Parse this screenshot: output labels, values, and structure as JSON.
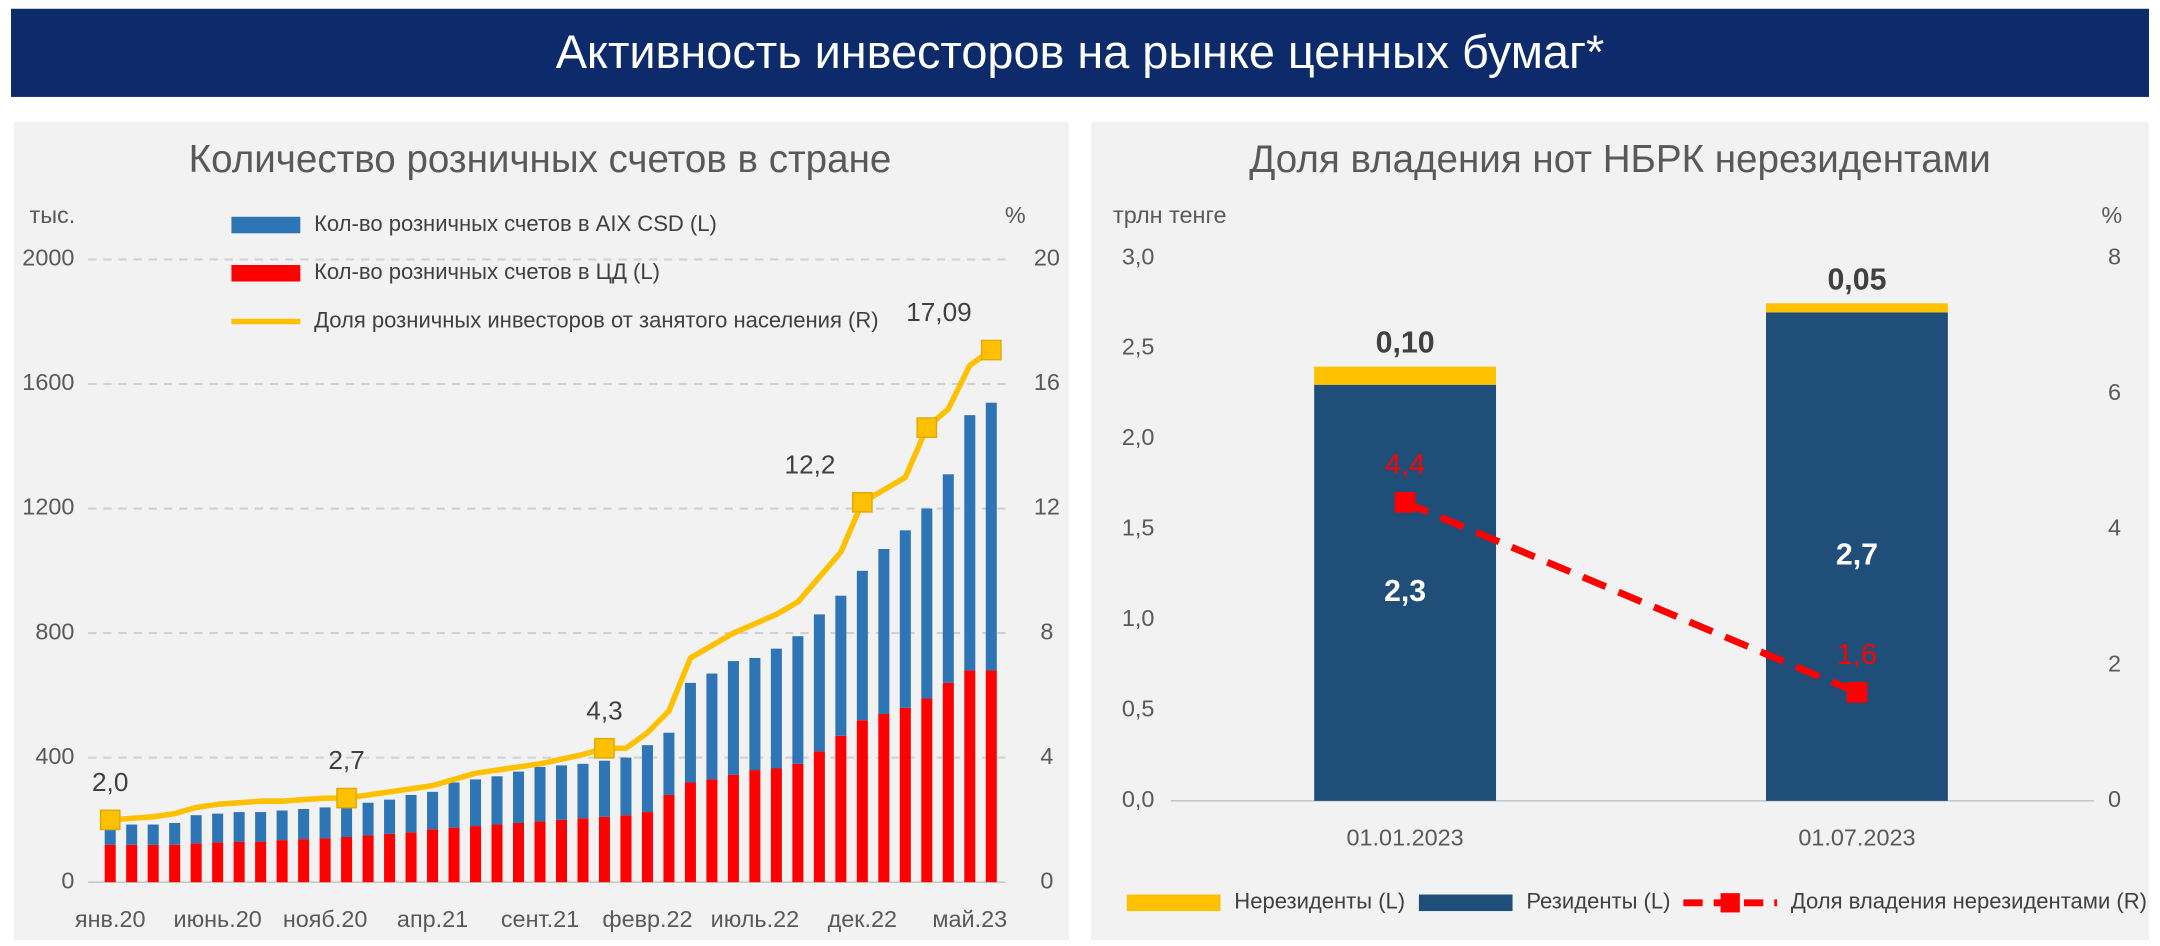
{
  "header": {
    "title": "Активность инвесторов на рынке ценных бумаг*"
  },
  "chart_data": [
    {
      "type": "bar",
      "title": "Количество розничных счетов в стране",
      "ylabel": "тыс.",
      "y2label": "%",
      "categories": [
        "янв.20",
        null,
        null,
        null,
        null,
        "июнь.20",
        null,
        null,
        null,
        null,
        "нояб.20",
        null,
        null,
        null,
        null,
        "апр.21",
        null,
        null,
        null,
        null,
        "сент.21",
        null,
        null,
        null,
        null,
        "февр.22",
        null,
        null,
        null,
        null,
        "июль.22",
        null,
        null,
        null,
        null,
        "дек.22",
        null,
        null,
        null,
        null,
        "май.23",
        null
      ],
      "series": [
        {
          "name": "Кол-во розничных счетов в AIX CSD (L)",
          "color": "#2e75b6",
          "values": [
            70,
            65,
            65,
            70,
            90,
            92,
            95,
            95,
            95,
            97,
            100,
            100,
            105,
            110,
            120,
            120,
            145,
            150,
            155,
            165,
            175,
            175,
            175,
            180,
            185,
            215,
            200,
            320,
            340,
            365,
            360,
            385,
            410,
            440,
            450,
            480,
            530,
            570,
            610,
            670,
            820,
            860
          ]
        },
        {
          "name": "Кол-во розничных счетов в ЦД (L)",
          "color": "#ff0000",
          "values": [
            120,
            120,
            120,
            120,
            125,
            128,
            130,
            130,
            135,
            138,
            140,
            145,
            150,
            155,
            160,
            170,
            175,
            180,
            185,
            190,
            195,
            200,
            205,
            210,
            215,
            225,
            280,
            320,
            330,
            345,
            360,
            365,
            380,
            420,
            470,
            520,
            540,
            560,
            590,
            640,
            680,
            680
          ]
        },
        {
          "name": "Доля розничных инвесторов от занятого населения (R)",
          "color": "#ffc000",
          "axis": "y2",
          "values": [
            2.0,
            2.05,
            2.1,
            2.2,
            2.4,
            2.5,
            2.55,
            2.6,
            2.6,
            2.65,
            2.7,
            2.7,
            2.8,
            2.9,
            3.0,
            3.1,
            3.3,
            3.5,
            3.6,
            3.7,
            3.8,
            3.95,
            4.1,
            4.3,
            4.3,
            4.8,
            5.5,
            7.2,
            7.6,
            8.0,
            8.3,
            8.6,
            9.0,
            9.8,
            10.6,
            12.2,
            12.6,
            13.0,
            14.6,
            15.2,
            16.6,
            17.09
          ],
          "value_labels": [
            "2,0",
            null,
            null,
            null,
            null,
            null,
            null,
            null,
            null,
            null,
            null,
            "2,7",
            null,
            null,
            null,
            null,
            null,
            null,
            null,
            null,
            null,
            null,
            null,
            "4,3",
            null,
            null,
            null,
            null,
            null,
            null,
            null,
            null,
            null,
            null,
            null,
            "12,2",
            null,
            null,
            null,
            null,
            null,
            "17,09"
          ],
          "markers": [
            0,
            11,
            23,
            35,
            38,
            41
          ]
        }
      ],
      "ylim": [
        0,
        2000
      ],
      "yticks": [
        0,
        400,
        800,
        1200,
        1600,
        2000
      ],
      "y2lim": [
        0,
        20
      ],
      "y2ticks": [
        0,
        4,
        8,
        12,
        16,
        20
      ],
      "grid": true
    },
    {
      "type": "bar",
      "title": "Доля владения нот НБРК нерезидентами",
      "ylabel": "трлн тенге",
      "y2label": "%",
      "categories": [
        "01.01.2023",
        "01.07.2023"
      ],
      "series": [
        {
          "name": "Нерезиденты (L)",
          "color": "#ffc000",
          "values": [
            0.1,
            0.05
          ],
          "value_labels": [
            "0,10",
            "0,05"
          ]
        },
        {
          "name": "Резиденты (L)",
          "color": "#1f4e79",
          "values": [
            2.3,
            2.7
          ],
          "value_labels": [
            "2,3",
            "2,7"
          ]
        },
        {
          "name": "Доля владения нерезидентами (R)",
          "color": "#ff0000",
          "axis": "y2",
          "line_style": "dashed",
          "values": [
            4.4,
            1.6
          ],
          "value_labels": [
            "4,4",
            "1,6"
          ]
        }
      ],
      "ylim": [
        0,
        3.0
      ],
      "yticks": [
        {
          "value": 0,
          "label": "0,0"
        },
        {
          "value": 0.5,
          "label": "0,5"
        },
        {
          "value": 1.0,
          "label": "1,0"
        },
        {
          "value": 1.5,
          "label": "1,5"
        },
        {
          "value": 2.0,
          "label": "2,0"
        },
        {
          "value": 2.5,
          "label": "2,5"
        },
        {
          "value": 3.0,
          "label": "3,0"
        }
      ],
      "y2lim": [
        0,
        8
      ],
      "y2ticks": [
        0,
        2,
        4,
        6,
        8
      ],
      "grid": false
    }
  ]
}
